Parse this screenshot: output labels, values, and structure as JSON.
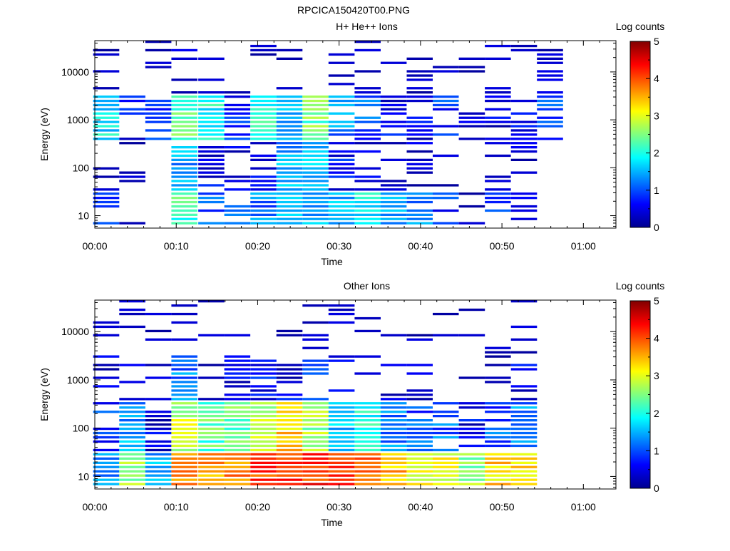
{
  "figure_title": "RPCICA150420T00.PNG",
  "chart_data": [
    {
      "type": "heatmap",
      "title": "H+ He++ Ions",
      "xlabel": "Time",
      "ylabel": "Energy (eV)",
      "x_tick_labels": [
        "00:00",
        "00:10",
        "00:20",
        "00:30",
        "00:40",
        "00:50",
        "01:00"
      ],
      "x_range_minutes": [
        0,
        64
      ],
      "y_scale": "log",
      "y_range_eV": [
        5.5,
        45000
      ],
      "y_tick_labels": [
        "10",
        "100",
        "1000",
        "10000"
      ],
      "y_tick_values": [
        10,
        100,
        1000,
        10000
      ],
      "colorbar": {
        "label": "Log counts",
        "range": [
          0,
          5
        ],
        "tick_labels": [
          "0",
          "1",
          "2",
          "3",
          "4",
          "5"
        ],
        "colormap": "jet"
      },
      "time_bins_minutes": [
        1.4,
        4.6,
        7.8,
        11.0,
        14.3,
        17.5,
        20.7,
        23.9,
        27.1,
        30.3,
        33.5,
        36.7,
        39.9,
        43.1,
        46.3,
        49.5,
        52.7,
        55.9
      ],
      "energy_band_summary": [
        {
          "energy_min_eV": 6,
          "energy_max_eV": 30,
          "log_counts_per_bin": [
            0.9,
            0.2,
            0.0,
            2.2,
            1.0,
            1.1,
            1.2,
            1.6,
            1.5,
            1.6,
            1.8,
            1.5,
            1.2,
            0.8,
            0.3,
            1.0,
            0.8,
            0.0
          ]
        },
        {
          "energy_min_eV": 30,
          "energy_max_eV": 300,
          "log_counts_per_bin": [
            0.1,
            0.1,
            0.0,
            1.4,
            0.5,
            0.3,
            0.5,
            1.4,
            1.6,
            0.6,
            0.3,
            0.2,
            0.2,
            0.2,
            0.1,
            0.1,
            0.2,
            0.0
          ]
        },
        {
          "energy_min_eV": 300,
          "energy_max_eV": 3000,
          "log_counts_per_bin": [
            1.8,
            0.6,
            0.7,
            2.3,
            1.9,
            0.8,
            2.0,
            1.6,
            2.4,
            1.3,
            1.0,
            0.6,
            0.5,
            0.8,
            0.3,
            0.5,
            0.6,
            0.9
          ]
        },
        {
          "energy_min_eV": 3000,
          "energy_max_eV": 45000,
          "log_counts_per_bin": [
            0.1,
            0.1,
            0.1,
            0.2,
            0.1,
            0.1,
            0.1,
            0.1,
            0.2,
            0.1,
            0.1,
            0.1,
            0.1,
            0.1,
            0.1,
            0.1,
            0.1,
            0.2
          ]
        }
      ]
    },
    {
      "type": "heatmap",
      "title": "Other Ions",
      "xlabel": "Time",
      "ylabel": "Energy (eV)",
      "x_tick_labels": [
        "00:00",
        "00:10",
        "00:20",
        "00:30",
        "00:40",
        "00:50",
        "01:00"
      ],
      "x_range_minutes": [
        0,
        64
      ],
      "y_scale": "log",
      "y_range_eV": [
        5.5,
        45000
      ],
      "y_tick_labels": [
        "10",
        "100",
        "1000",
        "10000"
      ],
      "y_tick_values": [
        10,
        100,
        1000,
        10000
      ],
      "colorbar": {
        "label": "Log counts",
        "range": [
          0,
          5
        ],
        "tick_labels": [
          "0",
          "1",
          "2",
          "3",
          "4",
          "5"
        ],
        "colormap": "jet"
      },
      "time_bins_minutes": [
        1.4,
        4.6,
        7.8,
        11.0,
        14.3,
        17.5,
        20.7,
        23.9,
        27.1,
        30.3,
        33.5,
        36.7,
        39.9,
        43.1,
        46.3,
        49.5,
        52.7,
        55.9
      ],
      "energy_band_summary": [
        {
          "energy_min_eV": 6,
          "energy_max_eV": 30,
          "log_counts_per_bin": [
            1.4,
            2.6,
            1.4,
            3.8,
            3.6,
            3.8,
            4.0,
            4.2,
            4.2,
            4.0,
            3.8,
            3.5,
            3.1,
            3.0,
            2.6,
            3.3,
            3.4,
            0.0
          ]
        },
        {
          "energy_min_eV": 30,
          "energy_max_eV": 300,
          "log_counts_per_bin": [
            0.8,
            1.4,
            0.4,
            2.8,
            2.3,
            2.4,
            2.7,
            3.3,
            2.6,
            1.6,
            2.0,
            1.3,
            1.0,
            1.1,
            0.5,
            1.0,
            1.3,
            0.0
          ]
        },
        {
          "energy_min_eV": 300,
          "energy_max_eV": 3000,
          "log_counts_per_bin": [
            0.4,
            0.3,
            0.2,
            1.2,
            0.4,
            0.5,
            0.6,
            0.5,
            0.8,
            0.4,
            0.3,
            0.2,
            0.2,
            0.2,
            0.2,
            0.3,
            0.5,
            0.0
          ]
        },
        {
          "energy_min_eV": 3000,
          "energy_max_eV": 45000,
          "log_counts_per_bin": [
            0.1,
            0.1,
            0.1,
            0.1,
            0.1,
            0.1,
            0.1,
            0.1,
            0.1,
            0.1,
            0.1,
            0.1,
            0.1,
            0.1,
            0.1,
            0.1,
            0.1,
            0.0
          ]
        }
      ]
    }
  ]
}
